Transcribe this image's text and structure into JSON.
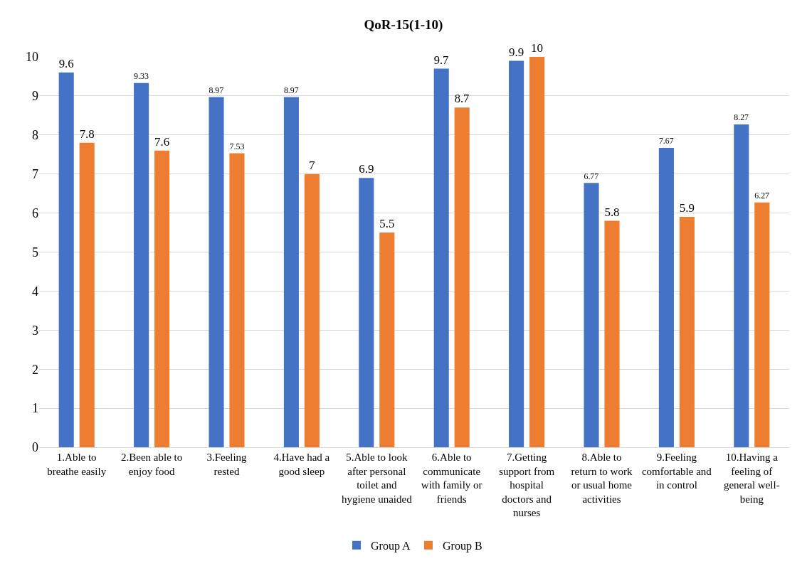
{
  "chart_data": {
    "type": "bar",
    "title": "QoR-15(1-10)",
    "categories": [
      "1.Able to breathe easily",
      "2.Been able to enjoy food",
      "3.Feeling rested",
      "4.Have had a good sleep",
      "5.Able to look after personal toilet and hygiene unaided",
      "6.Able to communicate with family or friends",
      "7.Getting support from hospital doctors and nurses",
      "8.Able to return to work or usual home activities",
      "9.Feeling comfortable and in control",
      "10.Having a feeling of general well-being"
    ],
    "series": [
      {
        "name": "Group A",
        "color": "#4472c4",
        "values": [
          9.6,
          9.33,
          8.97,
          8.97,
          6.9,
          9.7,
          9.9,
          6.77,
          7.67,
          8.27
        ]
      },
      {
        "name": "Group B",
        "color": "#ed7d31",
        "values": [
          7.8,
          7.6,
          7.53,
          7,
          5.5,
          8.7,
          10,
          5.8,
          5.9,
          6.27
        ]
      }
    ],
    "ylim": [
      0,
      10
    ],
    "yticks": [
      0,
      1,
      2,
      3,
      4,
      5,
      6,
      7,
      8,
      9,
      10
    ],
    "grid": "y",
    "legend": "bottom",
    "data_labels": true
  }
}
